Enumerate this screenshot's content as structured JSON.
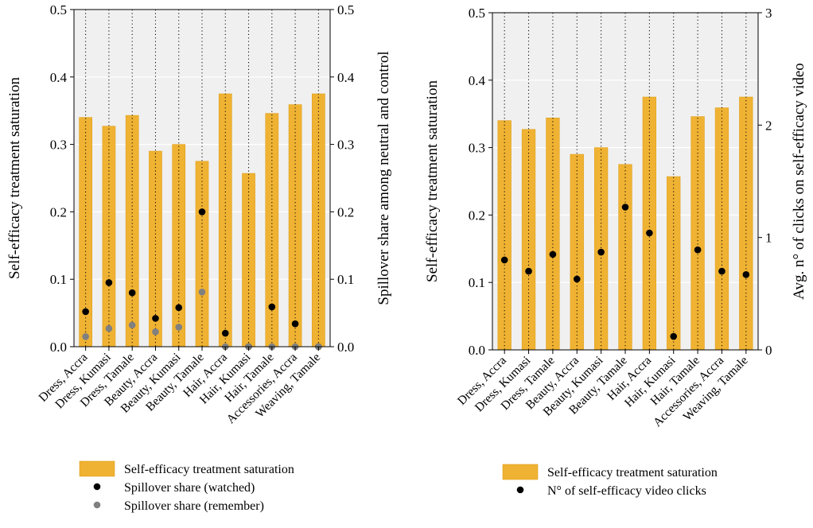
{
  "colors": {
    "bar": "#EFB232",
    "bar_edge": "#E0A020",
    "panel_bg": "#F0F0F0",
    "grid": "#FFFFFF",
    "watched": "#000000",
    "remember": "#808080",
    "clicks": "#000000"
  },
  "chart_data": [
    {
      "type": "bar",
      "categories": [
        "Dress, Accra",
        "Dress, Kumasi",
        "Dress, Tamale",
        "Beauty, Accra",
        "Beauty, Kumasi",
        "Beauty, Tamale",
        "Hair, Accra",
        "Hair, Kumasi",
        "Hair, Tamale",
        "Accessories, Accra",
        "Weaving, Tamale"
      ],
      "ylabel": "Self-efficacy treatment saturation",
      "ylabel_right": "Spillover share among neutral and control",
      "ylim": [
        0,
        0.5
      ],
      "ylim_right": [
        0,
        0.5
      ],
      "yticks": [
        0.0,
        0.1,
        0.2,
        0.3,
        0.4,
        0.5
      ],
      "yticks_right": [
        0.0,
        0.1,
        0.2,
        0.3,
        0.4,
        0.5
      ],
      "grid": true,
      "legend_position": "bottom",
      "series": [
        {
          "name": "Self-efficacy treatment saturation",
          "kind": "bar",
          "axis": "left",
          "values": [
            0.34,
            0.327,
            0.343,
            0.29,
            0.3,
            0.275,
            0.375,
            0.257,
            0.346,
            0.359,
            0.375
          ]
        },
        {
          "name": "Spillover share (watched)",
          "kind": "point",
          "axis": "right",
          "values": [
            0.052,
            0.095,
            0.08,
            0.042,
            0.058,
            0.2,
            0.02,
            0.0,
            0.059,
            0.034,
            0.0
          ]
        },
        {
          "name": "Spillover share (remember)",
          "kind": "point",
          "axis": "right",
          "values": [
            0.015,
            0.027,
            0.032,
            0.022,
            0.029,
            0.081,
            0.0,
            0.0,
            0.0,
            0.0,
            0.0
          ]
        }
      ]
    },
    {
      "type": "bar",
      "categories": [
        "Dress, Accra",
        "Dress, Kumasi",
        "Dress, Tamale",
        "Beauty, Accra",
        "Beauty, Kumasi",
        "Beauty, Tamale",
        "Hair, Accra",
        "Hair, Kumasi",
        "Hair, Tamale",
        "Accessories, Accra",
        "Weaving, Tamale"
      ],
      "ylabel": "Self-efficacy treatment saturation",
      "ylabel_right": "Avg. n° of clicks on self-efficacy video",
      "ylim": [
        0,
        0.5
      ],
      "ylim_right": [
        0,
        3
      ],
      "yticks": [
        0.0,
        0.1,
        0.2,
        0.3,
        0.4,
        0.5
      ],
      "yticks_right": [
        0,
        1,
        2,
        3
      ],
      "grid": true,
      "legend_position": "bottom",
      "series": [
        {
          "name": "Self-efficacy treatment saturation",
          "kind": "bar",
          "axis": "left",
          "values": [
            0.34,
            0.327,
            0.344,
            0.29,
            0.3,
            0.275,
            0.375,
            0.257,
            0.346,
            0.359,
            0.375
          ]
        },
        {
          "name": "N° of self-efficacy video clicks",
          "kind": "point",
          "axis": "right",
          "values": [
            0.8,
            0.7,
            0.85,
            0.63,
            0.87,
            1.27,
            1.04,
            0.12,
            0.89,
            0.7,
            0.67
          ]
        }
      ]
    }
  ]
}
